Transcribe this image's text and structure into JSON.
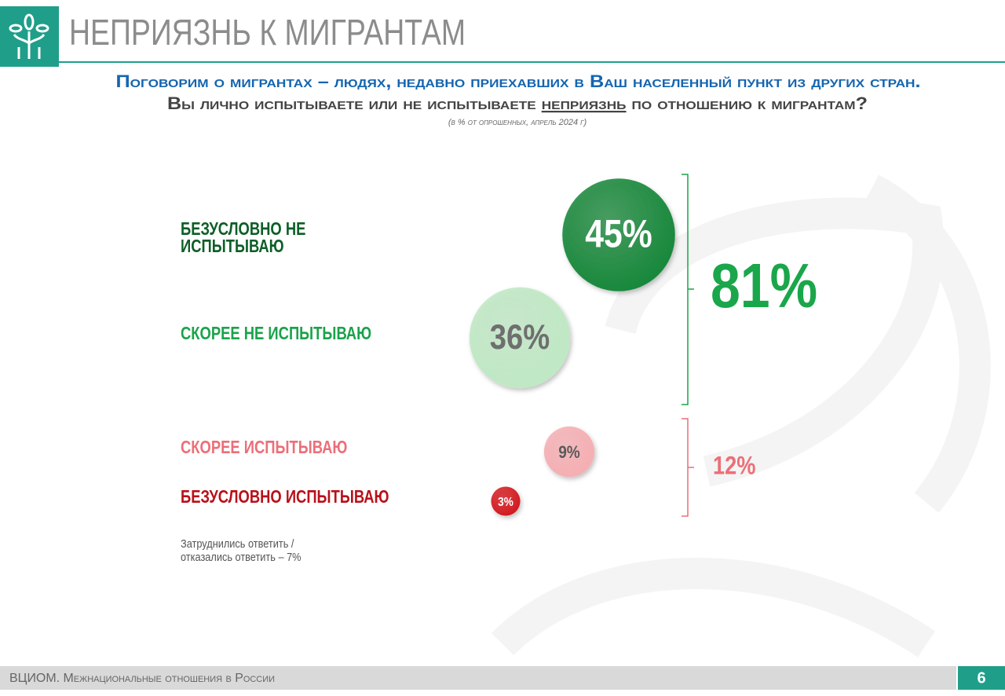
{
  "slide": {
    "title": "НЕПРИЯЗНЬ К МИГРАНТАМ",
    "note": [
      "Затруднились ответить /",
      "отказались ответить – 7%"
    ],
    "footer": "ВЦИОМ. Межнациональные отношения в России",
    "page": "6"
  },
  "chart_data": {
    "type": "bubble",
    "title": "Поговорим о мигрантах – людях, недавно приехавших в Ваш населенный пункт из других стран.",
    "subtitle": [
      "Вы лично испытываете или не испытываете ",
      "неприязнь",
      " по отношению к мигрантам?"
    ],
    "note": "(в % от опрошенных, апрель 2024 г)",
    "categories": [
      "БЕЗУСЛОВНО НЕ ИСПЫТЫВАЮ",
      "СКОРЕЕ НЕ ИСПЫТЫВАЮ",
      "СКОРЕЕ ИСПЫТЫВАЮ",
      "БЕЗУСЛОВНО ИСПЫТЫВАЮ"
    ],
    "values": [
      45,
      36,
      9,
      3
    ],
    "value_labels": [
      "45%",
      "36%",
      "9%",
      "3%"
    ],
    "colors": [
      "#17873a",
      "#bfe8c4",
      "#f5aeb2",
      "#d3141b"
    ],
    "label_colors": [
      "#0d5e27",
      "#1aa34a",
      "#ec6f78",
      "#b8111a"
    ],
    "text_colors": [
      "#ffffff",
      "#6f6f6f",
      "#5a5a5a",
      "#ffffff"
    ],
    "groups": [
      {
        "value": 81,
        "value_label": "81%",
        "color": "#1aa64a"
      },
      {
        "value": 12,
        "value_label": "12%",
        "color": "#ec6f78"
      }
    ]
  }
}
